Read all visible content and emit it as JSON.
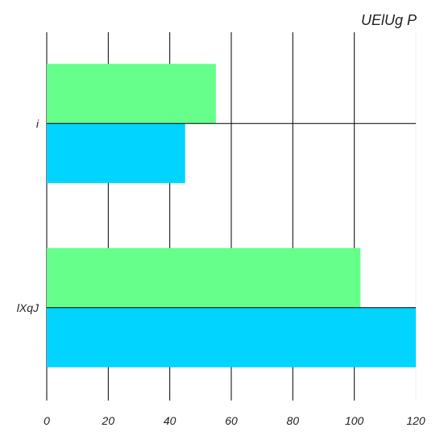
{
  "chart_data": {
    "type": "bar",
    "orientation": "horizontal",
    "title": "UElUg P",
    "categories": [
      "i",
      "lXqJ"
    ],
    "series": [
      {
        "values": [
          55,
          102
        ],
        "color": "#66ff8c"
      },
      {
        "values": [
          45,
          120
        ],
        "color": "#00d4ff"
      }
    ],
    "xlim": [
      0,
      120
    ],
    "x_ticks": [
      0,
      20,
      40,
      60,
      80,
      100,
      120
    ],
    "xlabel": "",
    "ylabel": "",
    "grid": true,
    "legend": "none"
  }
}
